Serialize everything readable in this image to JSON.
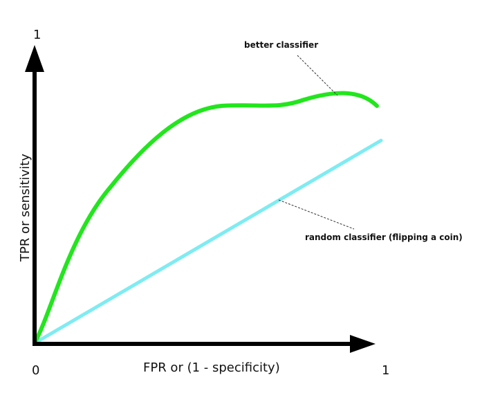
{
  "axes": {
    "y_max_label": "1",
    "origin_label": "0",
    "x_max_label": "1",
    "y_axis_title": "TPR or sensitivity",
    "x_axis_title": "FPR or (1 - specificity)"
  },
  "annotations": {
    "better": "better classifier",
    "random": "random classifier (flipping a coin)"
  },
  "colors": {
    "axis": "#000000",
    "better_curve": "#22e61d",
    "random_line": "#7eecf2",
    "leader": "#333333"
  }
}
